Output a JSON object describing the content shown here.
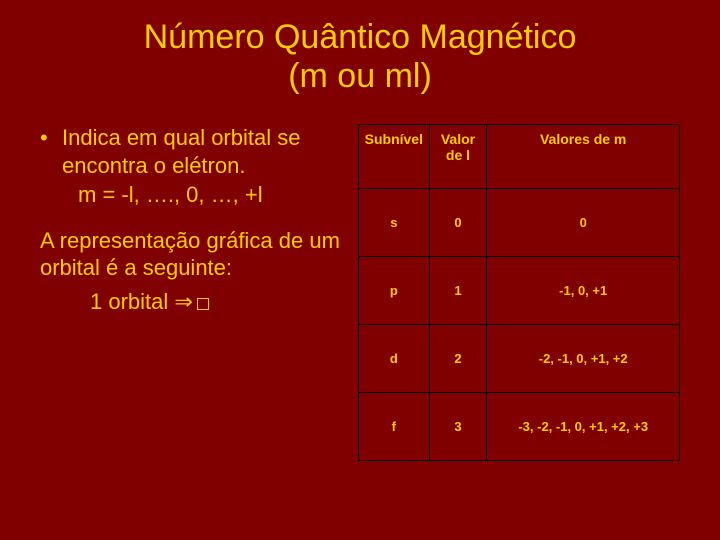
{
  "colors": {
    "background": "#800000",
    "text": "#ffcc00",
    "border": "#000000"
  },
  "title_line1": "Número Quântico Magnético",
  "title_line2": "(m ou ml)",
  "bullet": {
    "dot": "•",
    "text": "Indica em qual orbital se encontra o elétron.",
    "sub": "m = -l, …., 0, …, +l"
  },
  "para": "A representação gráfica de um orbital é a seguinte:",
  "para_sub_prefix": "1 orbital ",
  "para_sub_arrow": "⇒",
  "table": {
    "headers": [
      "Subnível",
      "Valor de l",
      "Valores de m"
    ],
    "rows": [
      {
        "c1": "s",
        "c2": "0",
        "c3": "0"
      },
      {
        "c1": "p",
        "c2": "1",
        "c3": "-1, 0, +1"
      },
      {
        "c1": "d",
        "c2": "2",
        "c3": "-2, -1, 0, +1, +2"
      },
      {
        "c1": "f",
        "c2": "3",
        "c3": "-3, -2, -1, 0, +1, +2, +3"
      }
    ]
  }
}
